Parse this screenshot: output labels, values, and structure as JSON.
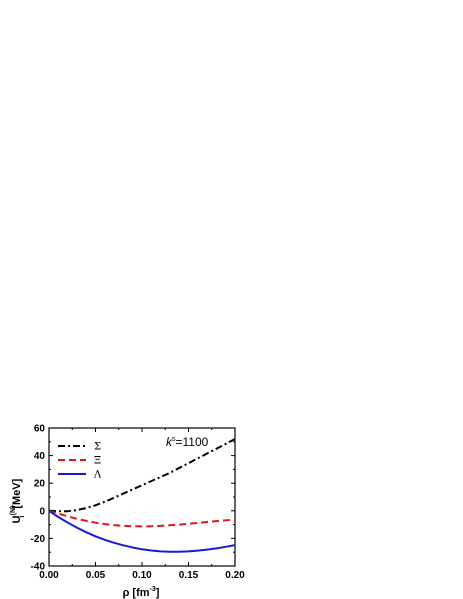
{
  "chart_data": {
    "type": "line",
    "title": "",
    "xlabel": "ρ [fm",
    "xlabel_sup": "-3",
    "xlabel_end": "]",
    "ylabel": "U",
    "ylabel_sup": "(N)",
    "ylabel_sub": "i",
    "ylabel_end": " [MeV]",
    "xlim": [
      0.0,
      0.2
    ],
    "ylim": [
      -40,
      60
    ],
    "xticks": [
      0.0,
      0.05,
      0.1,
      0.15,
      0.2
    ],
    "xtick_labels": [
      "0.00",
      "0.05",
      "0.10",
      "0.15",
      "0.20"
    ],
    "yticks": [
      -40,
      -20,
      0,
      20,
      40,
      60
    ],
    "ytick_labels": [
      "-40",
      "-20",
      "0",
      "20",
      "40",
      "60"
    ],
    "grid": false,
    "legend_placement": "top-left",
    "annotation": {
      "k": "k",
      "sup": "s",
      "text": "=1100"
    },
    "series": [
      {
        "name": "Σ",
        "color": "#000000",
        "style": "dash-dot",
        "x": [
          0.0,
          0.01,
          0.02,
          0.03,
          0.04,
          0.05,
          0.06,
          0.07,
          0.08,
          0.09,
          0.1,
          0.11,
          0.12,
          0.13,
          0.14,
          0.15,
          0.16,
          0.17,
          0.18,
          0.19,
          0.2
        ],
        "y": [
          0,
          -0.3,
          -0.3,
          0.5,
          2.0,
          4.0,
          6.5,
          9.5,
          12.5,
          15.5,
          18.5,
          21.5,
          24.5,
          27.5,
          31.0,
          34.5,
          38.0,
          41.5,
          45.0,
          48.5,
          52.0
        ]
      },
      {
        "name": "Ξ",
        "color": "#e8141c",
        "style": "dash",
        "x": [
          0.0,
          0.01,
          0.02,
          0.03,
          0.04,
          0.05,
          0.06,
          0.07,
          0.08,
          0.09,
          0.1,
          0.11,
          0.12,
          0.13,
          0.14,
          0.15,
          0.16,
          0.17,
          0.18,
          0.19,
          0.2
        ],
        "y": [
          0,
          -2.0,
          -4.0,
          -5.8,
          -7.3,
          -8.6,
          -9.6,
          -10.4,
          -10.9,
          -11.2,
          -11.3,
          -11.2,
          -10.9,
          -10.5,
          -10.0,
          -9.4,
          -8.8,
          -8.1,
          -7.5,
          -6.9,
          -6.3
        ]
      },
      {
        "name": "Λ",
        "color": "#1a1ad6",
        "style": "solid",
        "x": [
          0.0,
          0.01,
          0.02,
          0.03,
          0.04,
          0.05,
          0.06,
          0.07,
          0.08,
          0.09,
          0.1,
          0.11,
          0.12,
          0.13,
          0.14,
          0.15,
          0.16,
          0.17,
          0.18,
          0.19,
          0.2
        ],
        "y": [
          0,
          -4.5,
          -8.5,
          -12.2,
          -15.5,
          -18.5,
          -21.0,
          -23.2,
          -25.0,
          -26.6,
          -27.9,
          -28.8,
          -29.4,
          -29.7,
          -29.7,
          -29.4,
          -28.9,
          -28.1,
          -27.2,
          -26.1,
          -24.9
        ]
      }
    ]
  }
}
